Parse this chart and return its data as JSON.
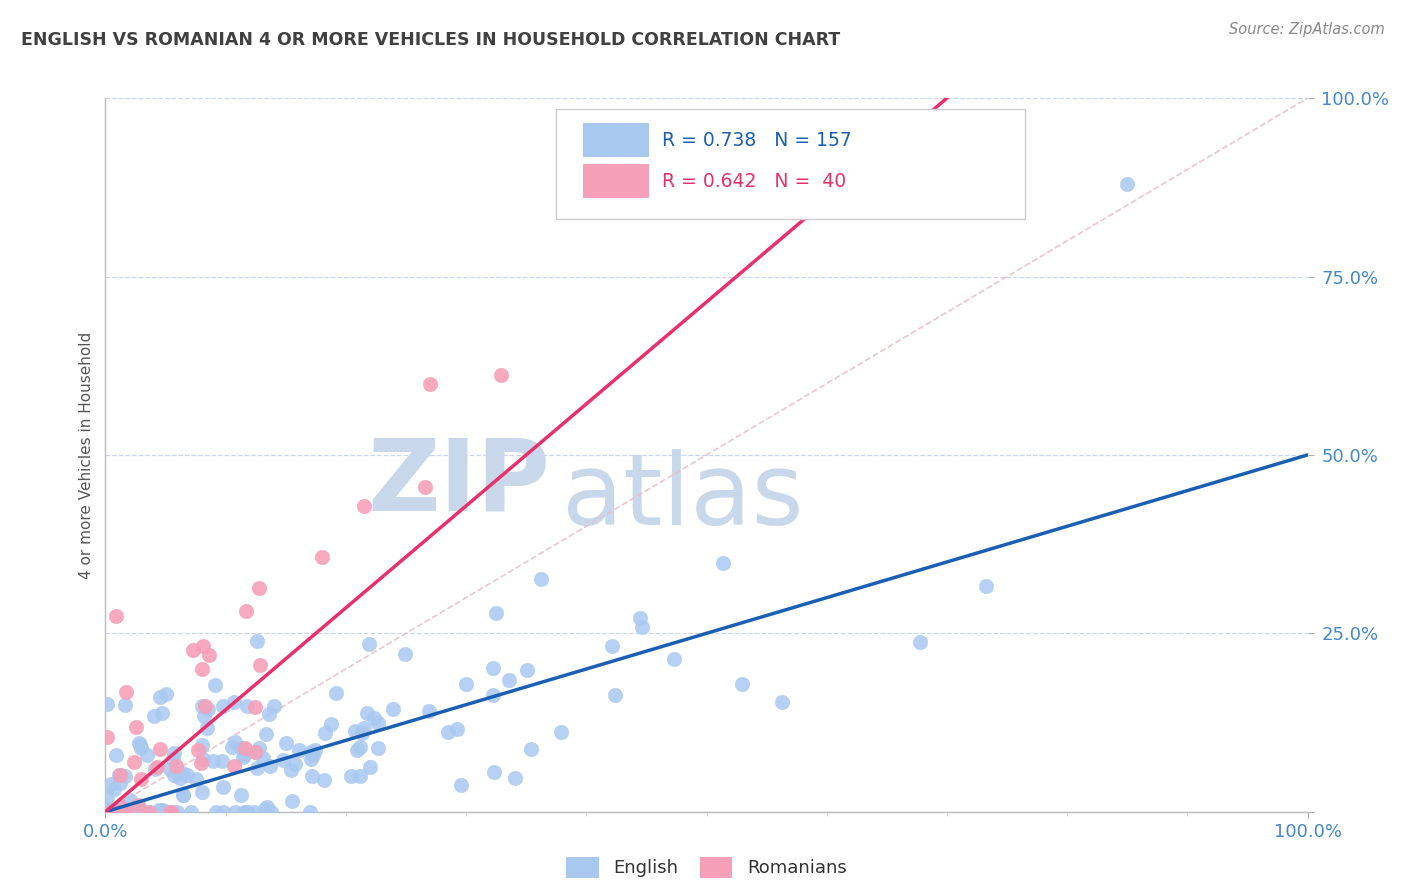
{
  "title": "ENGLISH VS ROMANIAN 4 OR MORE VEHICLES IN HOUSEHOLD CORRELATION CHART",
  "source_text": "Source: ZipAtlas.com",
  "ylabel": "4 or more Vehicles in Household",
  "english_color": "#a8c8f0",
  "romanian_color": "#f5a0b8",
  "english_line_color": "#1a5fb4",
  "romanian_line_color": "#e8306a",
  "diagonal_color": "#e8c0c8",
  "background_color": "#ffffff",
  "title_color": "#404040",
  "axis_label_color": "#4488cc",
  "watermark_zip_color": "#c8d8ea",
  "watermark_atlas_color": "#c8d8ea",
  "grid_color": "#c8d8ea",
  "english_R": 0.738,
  "english_N": 157,
  "romanian_R": 0.642,
  "romanian_N": 40,
  "xmin": 0.0,
  "xmax": 100.0,
  "ymin": 0.0,
  "ymax": 100.0,
  "eng_line_x0": 0.0,
  "eng_line_y0": 0.0,
  "eng_line_x1": 100.0,
  "eng_line_y1": 50.0,
  "rom_line_x0": 0.0,
  "rom_line_y0": 0.0,
  "rom_line_x1": 35.0,
  "rom_line_y1": 50.0
}
